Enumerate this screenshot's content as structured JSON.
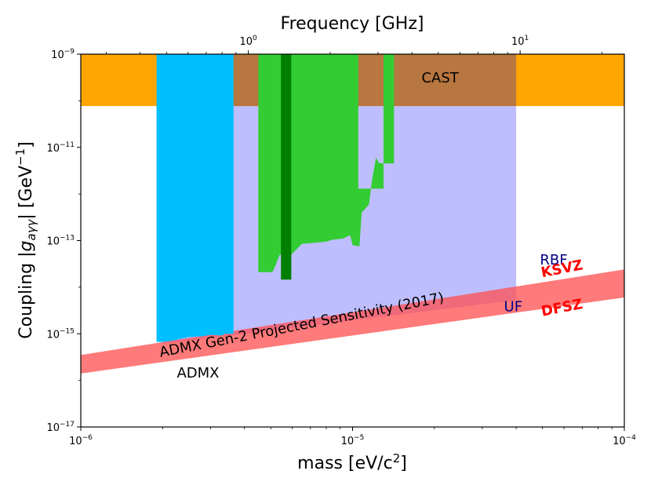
{
  "chart_data": {
    "type": "area",
    "title": "Frequency [GHz]",
    "xlabel": "mass [eV/c²]",
    "ylabel": "Coupling |g_aγγ| [GeV⁻¹]",
    "xscale": "log",
    "yscale": "log",
    "xlim": [
      1e-06,
      0.0001
    ],
    "ylim": [
      1e-17,
      1e-09
    ],
    "x_ticks": [
      {
        "value": 1e-06,
        "base": "10",
        "exp": "−6"
      },
      {
        "value": 1e-05,
        "base": "10",
        "exp": "−5"
      },
      {
        "value": 0.0001,
        "base": "10",
        "exp": "−4"
      }
    ],
    "y_ticks": [
      {
        "value": 1e-17,
        "base": "10",
        "exp": "−17"
      },
      {
        "value": 1e-15,
        "base": "10",
        "exp": "−15"
      },
      {
        "value": 1e-13,
        "base": "10",
        "exp": "−13"
      },
      {
        "value": 1e-11,
        "base": "10",
        "exp": "−11"
      },
      {
        "value": 1e-09,
        "base": "10",
        "exp": "−9"
      }
    ],
    "top_axis": {
      "label": "Frequency [GHz]",
      "ticks": [
        {
          "mass": 4.136e-06,
          "base": "10",
          "exp": "0"
        },
        {
          "mass": 4.136e-05,
          "base": "10",
          "exp": "1"
        }
      ]
    },
    "regions": [
      {
        "name": "ADMX Gen-2 Projected Sensitivity (2017)",
        "color": "#b3b3ff",
        "opacity": 0.85,
        "polygon": [
          [
            2e-06,
            6e-16
          ],
          [
            4e-05,
            5.3e-15
          ],
          [
            4e-05,
            1e-10
          ],
          [
            2e-06,
            1e-10
          ]
        ]
      },
      {
        "name": "CAST",
        "color": "#ffa500",
        "opacity": 1.0,
        "polygon": [
          [
            1e-06,
            1e-09
          ],
          [
            0.0001,
            1e-09
          ],
          [
            0.0001,
            7.7e-11
          ],
          [
            1e-06,
            7.7e-11
          ]
        ]
      },
      {
        "name": "CAST-overlap",
        "color": "#b87640",
        "opacity": 1.0,
        "polygon": [
          [
            2e-06,
            1e-09
          ],
          [
            4e-05,
            1e-09
          ],
          [
            4e-05,
            7.7e-11
          ],
          [
            2e-06,
            7.7e-11
          ]
        ]
      },
      {
        "name": "KSVZ/DFSZ band",
        "color": "#ff4d4d",
        "opacity": 0.75,
        "polygon": [
          [
            1e-06,
            3.5e-16
          ],
          [
            0.0001,
            2.4e-14
          ],
          [
            0.0001,
            6e-15
          ],
          [
            1e-06,
            1.4e-16
          ]
        ]
      },
      {
        "name": "ADMX",
        "color": "#00bfff",
        "opacity": 1.0,
        "polygon": [
          [
            1.9e-06,
            1e-09
          ],
          [
            3.65e-06,
            1e-09
          ],
          [
            3.65e-06,
            1e-15
          ],
          [
            3.4e-06,
            1e-15
          ],
          [
            3.3e-06,
            9.2e-16
          ],
          [
            3e-06,
            9.5e-16
          ],
          [
            2.8e-06,
            8.8e-16
          ],
          [
            2.5e-06,
            8.5e-16
          ],
          [
            2.3e-06,
            7.7e-16
          ],
          [
            2.2e-06,
            7.2e-16
          ],
          [
            2e-06,
            6.7e-16
          ],
          [
            1.9e-06,
            6.7e-16
          ]
        ]
      },
      {
        "name": "RBF",
        "color": "#33cc33",
        "opacity": 1.0,
        "polygon": [
          [
            4.5e-06,
            1e-09
          ],
          [
            1.05e-05,
            1e-09
          ],
          [
            1.05e-05,
            1.3e-12
          ],
          [
            1.3e-05,
            1.3e-12
          ],
          [
            1.3e-05,
            1e-09
          ],
          [
            1.42e-05,
            1e-09
          ],
          [
            1.42e-05,
            4.5e-12
          ],
          [
            1.3e-05,
            4.5e-12
          ],
          [
            1.25e-05,
            4.6e-12
          ],
          [
            1.22e-05,
            6e-12
          ],
          [
            1.2e-05,
            3.5e-12
          ],
          [
            1.18e-05,
            2e-12
          ],
          [
            1.15e-05,
            6e-13
          ],
          [
            1.12e-05,
            5e-13
          ],
          [
            1.08e-05,
            4e-13
          ],
          [
            1.06e-05,
            7.5e-14
          ],
          [
            1e-05,
            8e-14
          ],
          [
            9.8e-06,
            1.3e-13
          ],
          [
            9.5e-06,
            1.2e-13
          ],
          [
            9.2e-06,
            1.1e-13
          ],
          [
            8.5e-06,
            1.05e-13
          ],
          [
            8e-06,
            9.5e-14
          ],
          [
            7.5e-06,
            9.2e-14
          ],
          [
            7e-06,
            8.8e-14
          ],
          [
            6.5e-06,
            8.5e-14
          ],
          [
            6e-06,
            5.2e-14
          ],
          [
            5.6e-06,
            5e-14
          ],
          [
            5.4e-06,
            5e-14
          ],
          [
            5.1e-06,
            2.2e-14
          ],
          [
            5e-06,
            2.1e-14
          ],
          [
            4.5e-06,
            2.1e-14
          ]
        ]
      },
      {
        "name": "UF",
        "color": "#007f00",
        "opacity": 1.0,
        "polygon": [
          [
            5.45e-06,
            1e-09
          ],
          [
            5.95e-06,
            1e-09
          ],
          [
            5.95e-06,
            1.45e-14
          ],
          [
            5.45e-06,
            1.45e-14
          ]
        ]
      }
    ],
    "annotations": [
      {
        "key": "cast",
        "text": "CAST",
        "x": 2.1e-05,
        "y": 3e-10,
        "color": "#000000",
        "rotate": 0,
        "bold": false
      },
      {
        "key": "rbf",
        "text": "RBF",
        "x": 5.5e-05,
        "y": 3.7e-14,
        "color": "#000080",
        "rotate": 0,
        "bold": false
      },
      {
        "key": "uf",
        "text": "UF",
        "x": 3.9e-05,
        "y": 3.7e-15,
        "color": "#000080",
        "rotate": 0,
        "bold": false
      },
      {
        "key": "admx",
        "text": "ADMX",
        "x": 2.7e-06,
        "y": 1.4e-16,
        "color": "#000000",
        "rotate": 0,
        "bold": false
      },
      {
        "key": "admx_gen2",
        "text": "ADMX Gen-2 Projected Sensitivity (2017)",
        "x": 6.5e-06,
        "y": 1.5e-15,
        "color": "#000000",
        "rotate": -11,
        "bold": false
      },
      {
        "key": "ksvz",
        "text": "KSVZ",
        "x": 5.9e-05,
        "y": 2.4e-14,
        "color": "#ff0000",
        "rotate": -11,
        "bold": true
      },
      {
        "key": "dfsz",
        "text": "DFSZ",
        "x": 5.9e-05,
        "y": 3.5e-15,
        "color": "#ff0000",
        "rotate": -11,
        "bold": true
      }
    ]
  }
}
